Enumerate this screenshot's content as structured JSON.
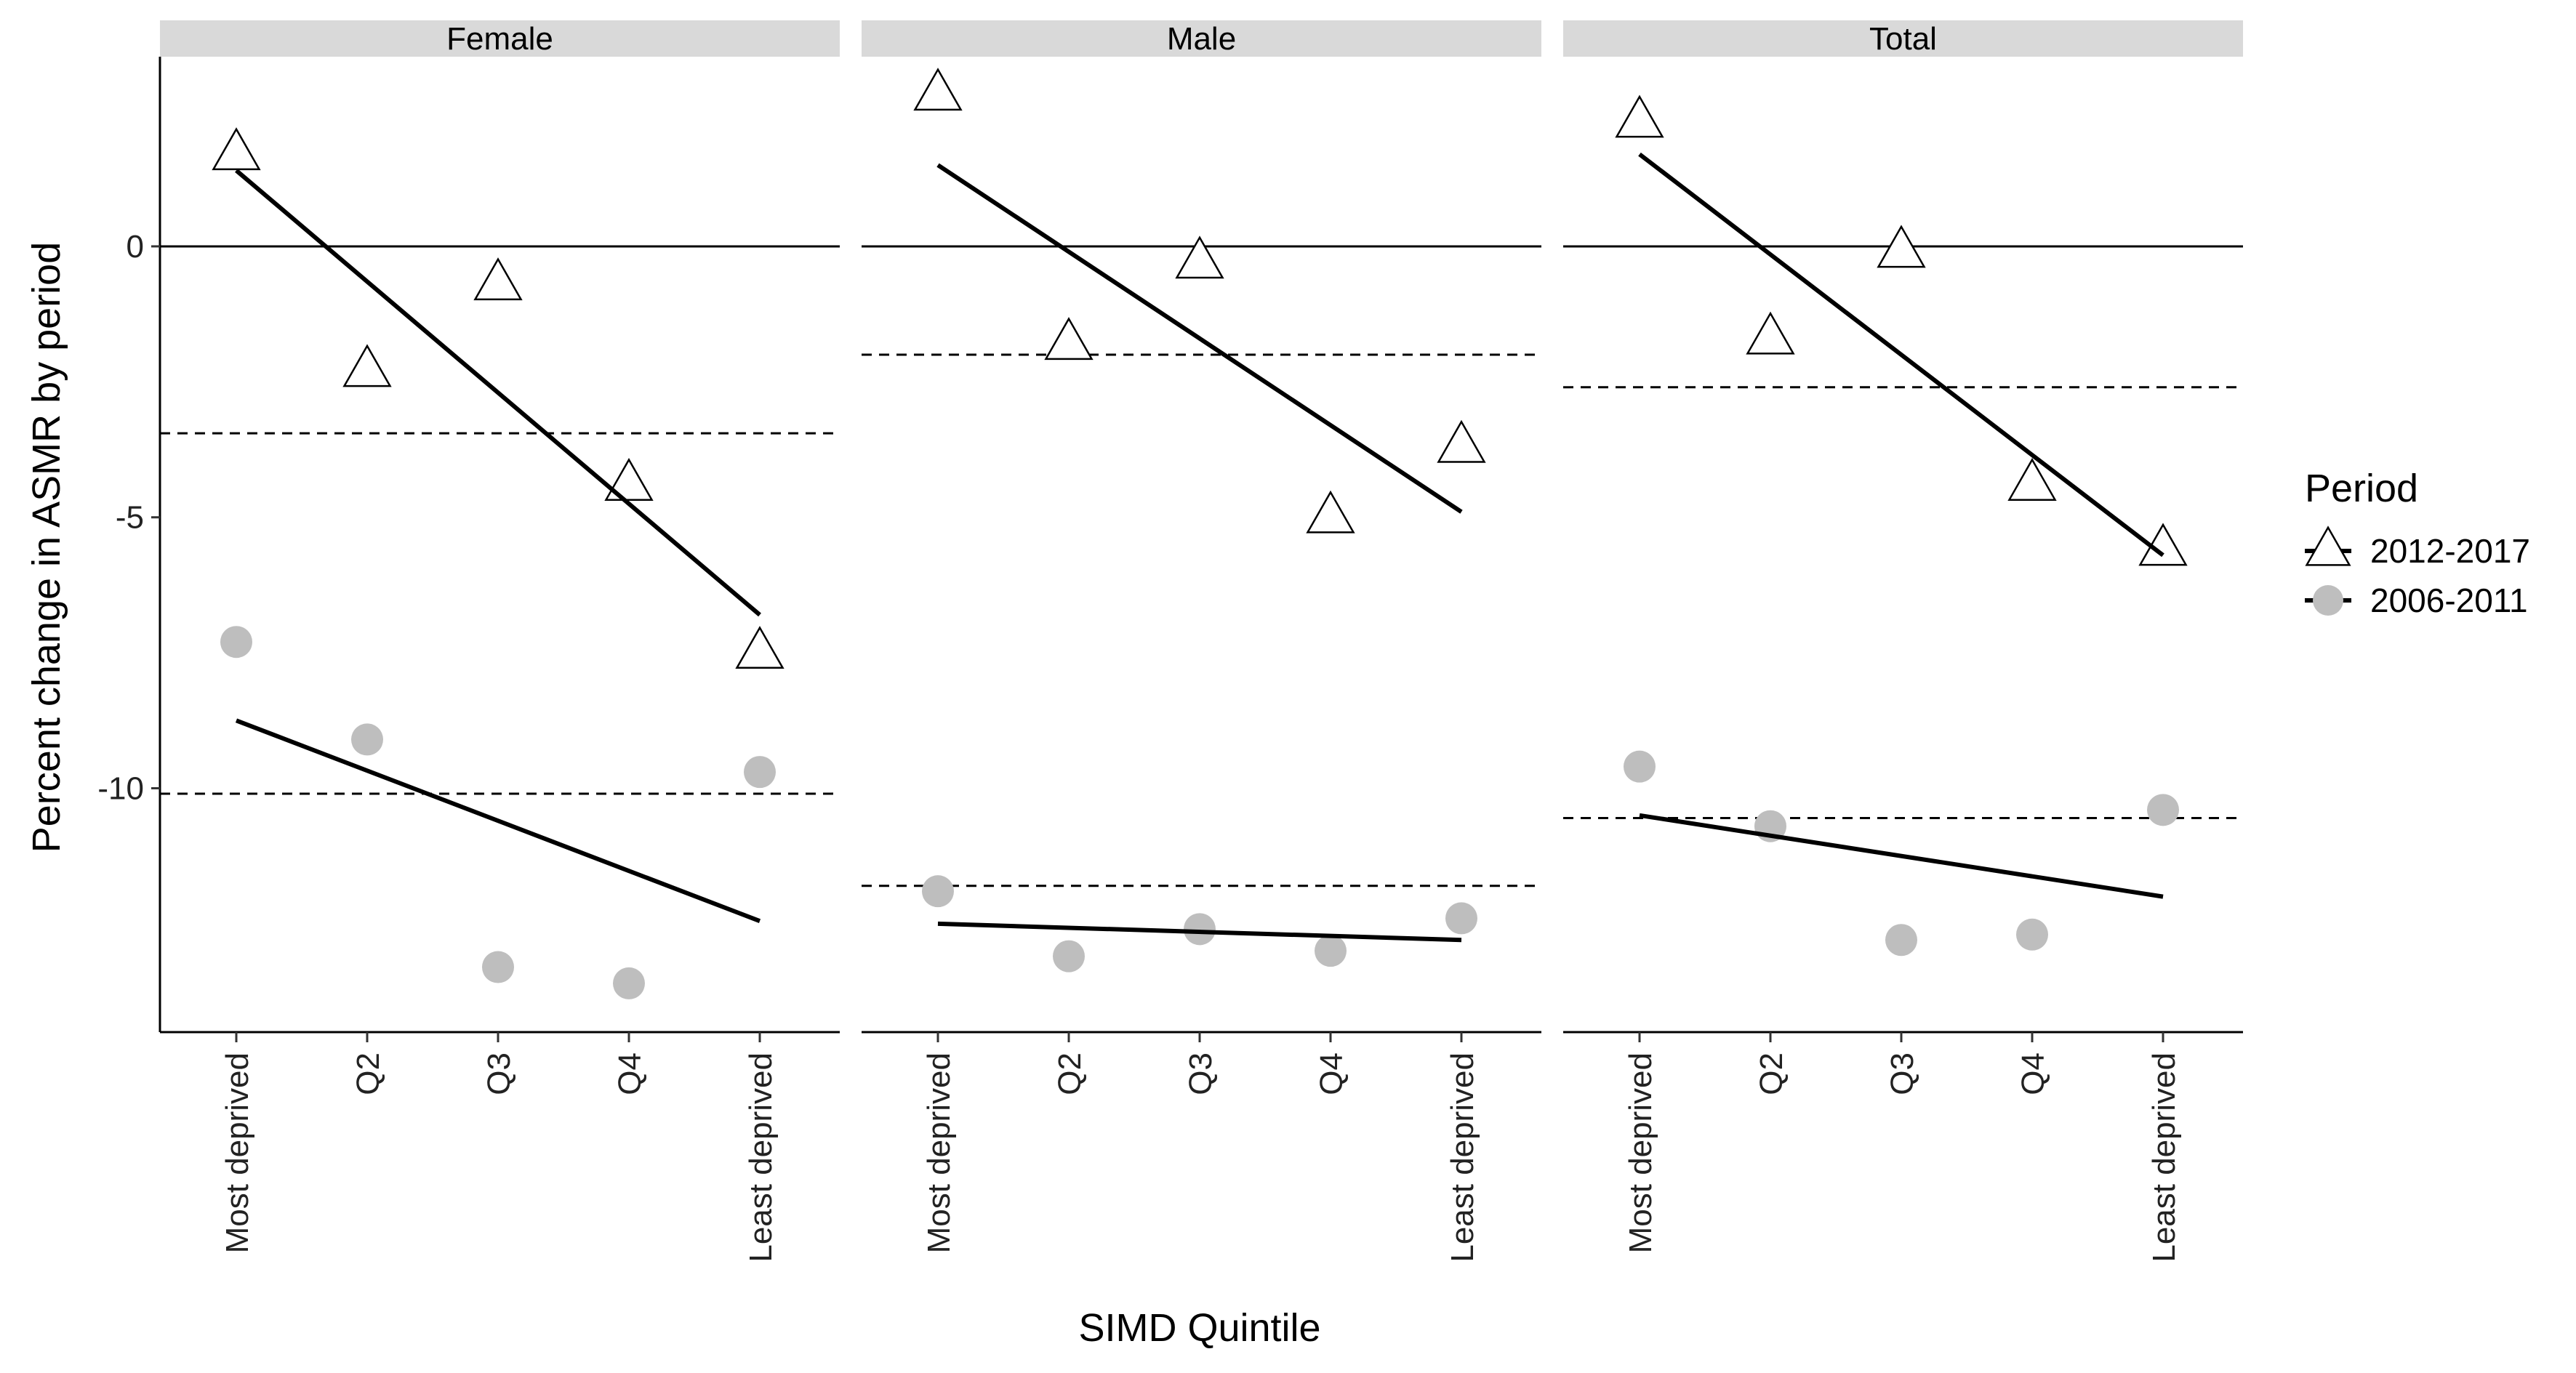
{
  "chart_data": {
    "type": "scatter",
    "facet_by": "sex",
    "ylabel": "Percent change in ASMR by period",
    "xlabel": "SIMD Quintile",
    "categories": [
      "Most deprived",
      "Q2",
      "Q3",
      "Q4",
      "Least deprived"
    ],
    "ylim": [
      -14.5,
      3.5
    ],
    "yticks": [
      0,
      -5,
      -10
    ],
    "legend": {
      "title": "Period",
      "position": "right",
      "entries": [
        {
          "label": "2012-2017",
          "marker": "open-triangle"
        },
        {
          "label": "2006-2011",
          "marker": "grey-circle"
        }
      ]
    },
    "series_styles": {
      "2012-2017": {
        "fill": "#ffffff",
        "stroke": "#000000"
      },
      "2006-2011": {
        "fill": "#bebebe",
        "stroke": "none"
      }
    },
    "facets": [
      {
        "name": "Female",
        "series": [
          {
            "name": "2012-2017",
            "values": [
              1.7,
              -2.3,
              -0.7,
              -4.4,
              -7.5
            ],
            "trend": [
              1.4,
              -6.8
            ],
            "mean_line": -3.45
          },
          {
            "name": "2006-2011",
            "values": [
              -7.3,
              -9.1,
              -13.3,
              -13.6,
              -9.7
            ],
            "trend": [
              -8.75,
              -12.45
            ],
            "mean_line": -10.1
          }
        ]
      },
      {
        "name": "Male",
        "series": [
          {
            "name": "2012-2017",
            "values": [
              2.8,
              -1.8,
              -0.3,
              -5.0,
              -3.7
            ],
            "trend": [
              1.5,
              -4.9
            ],
            "mean_line": -2.0
          },
          {
            "name": "2006-2011",
            "values": [
              -11.9,
              -13.1,
              -12.6,
              -13.0,
              -12.4
            ],
            "trend": [
              -12.5,
              -12.8
            ],
            "mean_line": -11.8
          }
        ]
      },
      {
        "name": "Total",
        "series": [
          {
            "name": "2012-2017",
            "values": [
              2.3,
              -1.7,
              -0.1,
              -4.4,
              -5.6
            ],
            "trend": [
              1.7,
              -5.7
            ],
            "mean_line": -2.6
          },
          {
            "name": "2006-2011",
            "values": [
              -9.6,
              -10.7,
              -12.8,
              -12.7,
              -10.4
            ],
            "trend": [
              -10.5,
              -12.0
            ],
            "mean_line": -10.55
          }
        ]
      }
    ],
    "reference_line": 0
  }
}
